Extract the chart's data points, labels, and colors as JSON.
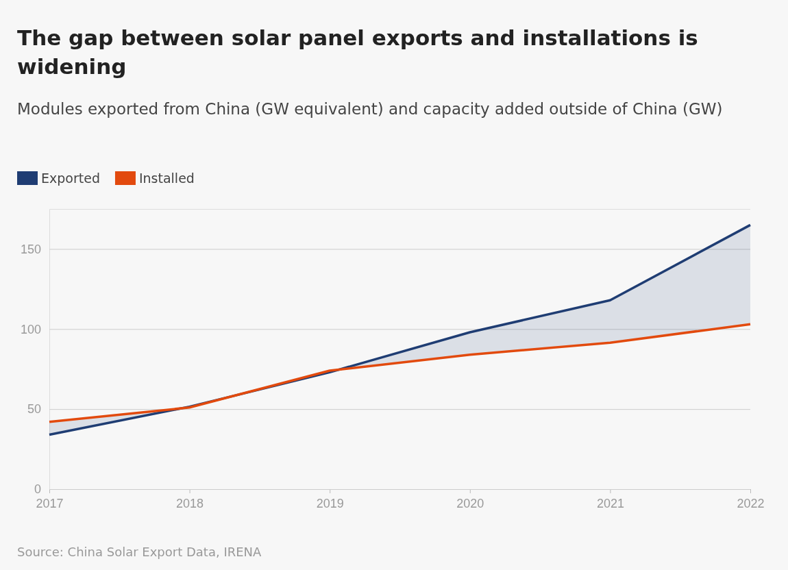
{
  "chart_data": {
    "type": "line",
    "title": "The gap between solar panel exports and installations is widening",
    "subtitle": "Modules exported from China (GW equivalent) and capacity added outside of China (GW)",
    "x": [
      2017,
      2018,
      2019,
      2020,
      2021,
      2022
    ],
    "series": [
      {
        "name": "Exported",
        "color": "#1f3d73",
        "values": [
          34,
          51.5,
          73,
          98,
          118,
          165
        ],
        "lower": [
          42,
          51,
          74,
          84,
          91.5,
          103
        ],
        "upper": [
          34,
          51.5,
          73,
          98,
          118,
          165
        ]
      },
      {
        "name": "Installed",
        "color": "#e24a0e",
        "values": [
          42,
          51,
          74,
          84,
          91.5,
          103
        ]
      }
    ],
    "xlim": [
      2017,
      2022
    ],
    "xticks": [
      2017,
      2018,
      2019,
      2020,
      2021,
      2022
    ],
    "ylim": [
      0,
      175
    ],
    "yticks": [
      0,
      50,
      100,
      150
    ],
    "grid": "y",
    "legend": "top left",
    "marker": "none",
    "line_style": "solid",
    "annotations": [
      "Source: China Solar Export Data, IRENA"
    ]
  }
}
